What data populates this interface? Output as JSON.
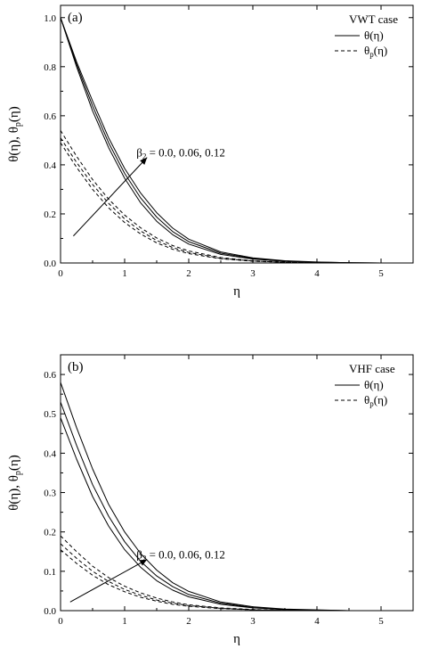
{
  "chart_data": [
    {
      "type": "line",
      "panel_label": "(a)",
      "legend_title": "VWT case",
      "legend_entries": [
        {
          "label": "θ(η)",
          "style": "solid"
        },
        {
          "label": "θ_p(η)",
          "base": "θ",
          "sub": "p",
          "tail": "(η)",
          "style": "dashed"
        }
      ],
      "xlabel": "η",
      "ylabel": "θ(η), θ_p(η)",
      "ylabel_parts": {
        "a": "θ(η), θ",
        "sub": "p",
        "b": "(η)"
      },
      "xlim": [
        0,
        5.5
      ],
      "ylim": [
        0,
        1.05
      ],
      "xticks": [
        0,
        1,
        2,
        3,
        4,
        5
      ],
      "yticks": [
        0.0,
        0.2,
        0.4,
        0.6,
        0.8,
        1.0
      ],
      "ytick_labels": [
        "0.0",
        "0.2",
        "0.4",
        "0.6",
        "0.8",
        "1.0"
      ],
      "annotation": {
        "base": "β",
        "sub": "2",
        "text": " = 0.0, 0.06, 0.12"
      },
      "arrow": {
        "x1": 0.2,
        "y1": 0.11,
        "x2": 1.35,
        "y2": 0.43
      },
      "x": [
        0,
        0.25,
        0.5,
        0.75,
        1.0,
        1.25,
        1.5,
        1.75,
        2.0,
        2.5,
        3.0,
        3.5,
        4.0,
        4.5,
        5.0
      ],
      "series": [
        {
          "group": "theta",
          "style": "solid",
          "values": [
            1.0,
            0.8,
            0.62,
            0.47,
            0.345,
            0.245,
            0.17,
            0.115,
            0.077,
            0.035,
            0.016,
            0.007,
            0.003,
            0.001,
            0.0
          ]
        },
        {
          "group": "theta",
          "style": "solid",
          "values": [
            1.0,
            0.81,
            0.64,
            0.49,
            0.365,
            0.265,
            0.187,
            0.128,
            0.087,
            0.04,
            0.018,
            0.008,
            0.003,
            0.001,
            0.0
          ]
        },
        {
          "group": "theta",
          "style": "solid",
          "values": [
            1.0,
            0.82,
            0.66,
            0.51,
            0.385,
            0.285,
            0.205,
            0.142,
            0.097,
            0.045,
            0.021,
            0.009,
            0.004,
            0.001,
            0.0
          ]
        },
        {
          "group": "theta_p",
          "style": "dashed",
          "values": [
            0.49,
            0.39,
            0.3,
            0.225,
            0.165,
            0.118,
            0.082,
            0.056,
            0.038,
            0.017,
            0.007,
            0.003,
            0.001,
            0.0,
            0.0
          ]
        },
        {
          "group": "theta_p",
          "style": "dashed",
          "values": [
            0.51,
            0.41,
            0.32,
            0.243,
            0.18,
            0.13,
            0.092,
            0.063,
            0.043,
            0.019,
            0.008,
            0.003,
            0.001,
            0.0,
            0.0
          ]
        },
        {
          "group": "theta_p",
          "style": "dashed",
          "values": [
            0.54,
            0.435,
            0.34,
            0.26,
            0.195,
            0.143,
            0.102,
            0.071,
            0.049,
            0.022,
            0.009,
            0.004,
            0.001,
            0.0,
            0.0
          ]
        }
      ]
    },
    {
      "type": "line",
      "panel_label": "(b)",
      "legend_title": "VHF case",
      "legend_entries": [
        {
          "label": "θ(η)",
          "style": "solid"
        },
        {
          "label": "θ_p(η)",
          "base": "θ",
          "sub": "p",
          "tail": "(η)",
          "style": "dashed"
        }
      ],
      "xlabel": "η",
      "ylabel": "θ(η), θ_p(η)",
      "ylabel_parts": {
        "a": "θ(η), θ",
        "sub": "p",
        "b": "(η)"
      },
      "xlim": [
        0,
        5.5
      ],
      "ylim": [
        0,
        0.65
      ],
      "xticks": [
        0,
        1,
        2,
        3,
        4,
        5
      ],
      "yticks": [
        0.0,
        0.1,
        0.2,
        0.3,
        0.4,
        0.5,
        0.6
      ],
      "ytick_labels": [
        "0.0",
        "0.1",
        "0.2",
        "0.3",
        "0.4",
        "0.5",
        "0.6"
      ],
      "annotation": {
        "base": "β",
        "sub": "2",
        "text": " = 0.0, 0.06, 0.12"
      },
      "arrow": {
        "x1": 0.15,
        "y1": 0.022,
        "x2": 1.35,
        "y2": 0.13
      },
      "x": [
        0,
        0.25,
        0.5,
        0.75,
        1.0,
        1.25,
        1.5,
        1.75,
        2.0,
        2.5,
        3.0,
        3.5,
        4.0,
        4.5,
        5.0
      ],
      "series": [
        {
          "group": "theta",
          "style": "solid",
          "values": [
            0.49,
            0.385,
            0.29,
            0.215,
            0.155,
            0.11,
            0.076,
            0.052,
            0.035,
            0.016,
            0.007,
            0.003,
            0.001,
            0.0,
            0.0
          ]
        },
        {
          "group": "theta",
          "style": "solid",
          "values": [
            0.53,
            0.42,
            0.32,
            0.24,
            0.175,
            0.125,
            0.088,
            0.061,
            0.041,
            0.019,
            0.008,
            0.003,
            0.001,
            0.0,
            0.0
          ]
        },
        {
          "group": "theta",
          "style": "solid",
          "values": [
            0.58,
            0.465,
            0.36,
            0.27,
            0.2,
            0.145,
            0.103,
            0.071,
            0.049,
            0.022,
            0.01,
            0.004,
            0.002,
            0.0,
            0.0
          ]
        },
        {
          "group": "theta_p",
          "style": "dashed",
          "values": [
            0.155,
            0.12,
            0.09,
            0.066,
            0.048,
            0.034,
            0.024,
            0.016,
            0.011,
            0.005,
            0.002,
            0.001,
            0.0,
            0.0,
            0.0
          ]
        },
        {
          "group": "theta_p",
          "style": "dashed",
          "values": [
            0.17,
            0.133,
            0.1,
            0.074,
            0.054,
            0.039,
            0.027,
            0.019,
            0.013,
            0.006,
            0.002,
            0.001,
            0.0,
            0.0,
            0.0
          ]
        },
        {
          "group": "theta_p",
          "style": "dashed",
          "values": [
            0.19,
            0.15,
            0.113,
            0.084,
            0.062,
            0.045,
            0.032,
            0.022,
            0.015,
            0.007,
            0.003,
            0.001,
            0.0,
            0.0,
            0.0
          ]
        }
      ]
    }
  ]
}
